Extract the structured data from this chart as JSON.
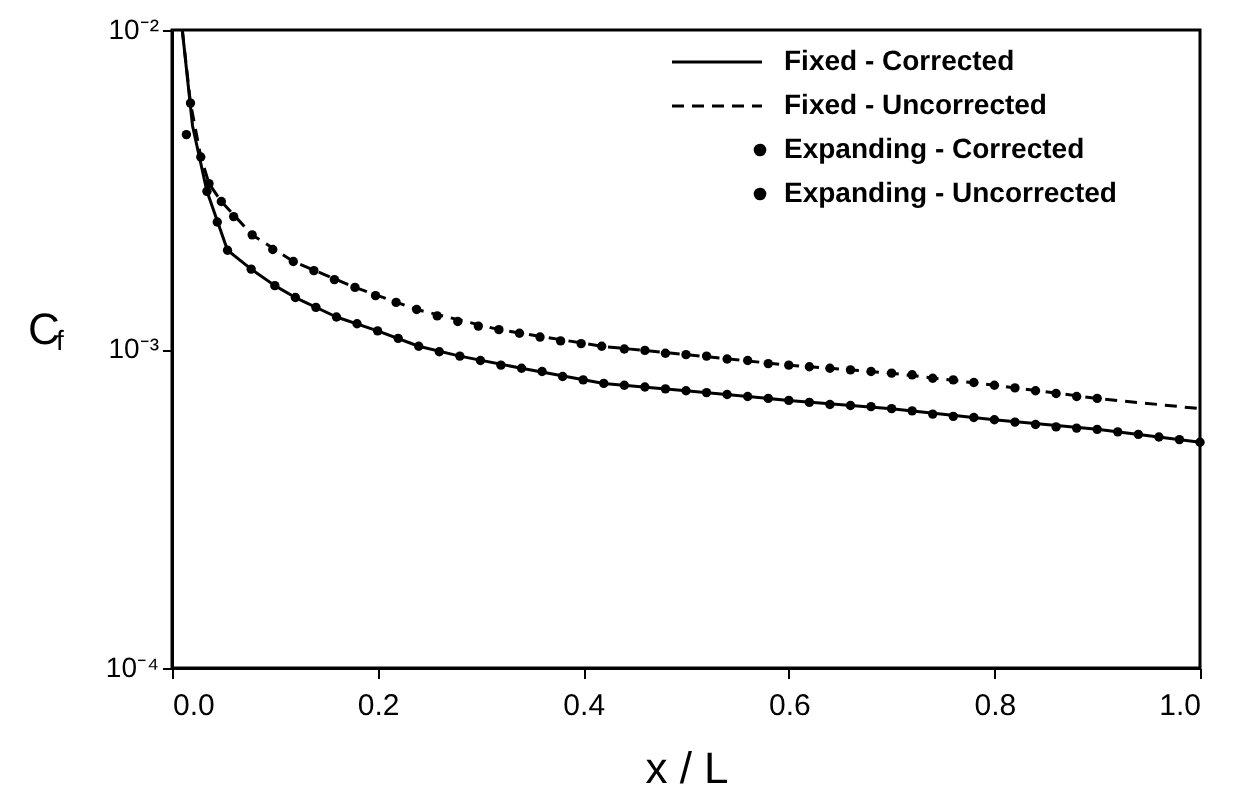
{
  "chart_data": {
    "type": "line",
    "xlabel": "x / L",
    "ylabel": "C$_{f}$",
    "log": "y",
    "grid": false,
    "legend": "top right",
    "xlim": [
      0,
      1
    ],
    "xticks": [
      {
        "value": 0,
        "label": "0.0"
      },
      {
        "value": 0.2,
        "label": "0.2"
      },
      {
        "value": 0.4,
        "label": "0.4"
      },
      {
        "value": 0.6,
        "label": "0.6"
      },
      {
        "value": 0.8,
        "label": "0.8"
      },
      {
        "value": 1,
        "label": "1.0"
      }
    ],
    "ylim": [
      0.0001,
      0.01
    ],
    "yticks": [
      {
        "value": 0.0001,
        "label": "10⁻⁴"
      },
      {
        "value": 0.001,
        "label": "10⁻³"
      },
      {
        "value": 0.01,
        "label": "10⁻²"
      }
    ],
    "series": [
      {
        "name": "Fixed - Corrected",
        "type": "line",
        "line_style": "solid",
        "marker": "none",
        "color": "#000000",
        "x": [
          0.01,
          0.02,
          0.034,
          0.054,
          0.077,
          0.1,
          0.12,
          0.16,
          0.2,
          0.24,
          0.28,
          0.34,
          0.42,
          0.5,
          0.6,
          0.7,
          0.8,
          0.9,
          1.0
        ],
        "values": [
          0.01,
          0.005,
          0.00312,
          0.00204,
          0.00178,
          0.00158,
          0.00145,
          0.00126,
          0.00114,
          0.00102,
          0.00095,
          0.00087,
          0.00078,
          0.00074,
          0.00069,
          0.00065,
          0.0006,
          0.00056,
          0.00051
        ]
      },
      {
        "name": "Fixed - Uncorrected",
        "type": "line",
        "line_style": "dashed",
        "marker": "none",
        "color": "#000000",
        "x": [
          0.01,
          0.018,
          0.028,
          0.036,
          0.048,
          0.078,
          0.118,
          0.178,
          0.238,
          0.318,
          0.418,
          0.5,
          0.6,
          0.7,
          0.8,
          0.9,
          1.0
        ],
        "values": [
          0.01,
          0.0059,
          0.004,
          0.0033,
          0.0029,
          0.00228,
          0.00188,
          0.00156,
          0.00133,
          0.00115,
          0.00102,
          0.00096,
          0.00089,
          0.00084,
          0.00077,
          0.0007,
          0.00065
        ]
      },
      {
        "name": "Expanding - Corrected",
        "type": "scatter",
        "marker": "circle",
        "color": "#000000",
        "x": [
          0.014,
          0.034,
          0.044,
          0.054,
          0.077,
          0.1,
          0.12,
          0.14,
          0.16,
          0.18,
          0.2,
          0.22,
          0.24,
          0.26,
          0.28,
          0.3,
          0.32,
          0.34,
          0.36,
          0.38,
          0.4,
          0.42,
          0.44,
          0.46,
          0.48,
          0.5,
          0.52,
          0.54,
          0.56,
          0.58,
          0.6,
          0.62,
          0.64,
          0.66,
          0.68,
          0.7,
          0.72,
          0.74,
          0.76,
          0.78,
          0.8,
          0.82,
          0.84,
          0.86,
          0.88,
          0.9,
          0.92,
          0.94,
          0.96,
          0.98,
          1.0
        ],
        "values": [
          0.0047,
          0.00312,
          0.0025,
          0.00204,
          0.00178,
          0.00158,
          0.00145,
          0.00135,
          0.00126,
          0.0012,
          0.00114,
          0.00108,
          0.00102,
          0.00098,
          0.00095,
          0.00092,
          0.00089,
          0.00087,
          0.00085,
          0.00082,
          0.0008,
          0.00078,
          0.00077,
          0.00076,
          0.00075,
          0.00074,
          0.00073,
          0.00072,
          0.00071,
          0.0007,
          0.00069,
          0.00068,
          0.00067,
          0.000665,
          0.00066,
          0.00065,
          0.00064,
          0.000625,
          0.000615,
          0.00061,
          0.0006,
          0.00059,
          0.00058,
          0.00057,
          0.000565,
          0.00056,
          0.00055,
          0.00054,
          0.00053,
          0.00052,
          0.00051
        ]
      },
      {
        "name": "Expanding - Uncorrected",
        "type": "scatter",
        "marker": "circle",
        "color": "#000000",
        "x": [
          0.018,
          0.028,
          0.036,
          0.048,
          0.06,
          0.078,
          0.098,
          0.118,
          0.138,
          0.158,
          0.178,
          0.198,
          0.218,
          0.238,
          0.258,
          0.278,
          0.298,
          0.318,
          0.338,
          0.358,
          0.378,
          0.398,
          0.418,
          0.44,
          0.46,
          0.48,
          0.5,
          0.52,
          0.54,
          0.56,
          0.58,
          0.6,
          0.62,
          0.64,
          0.66,
          0.68,
          0.7,
          0.72,
          0.74,
          0.76,
          0.78,
          0.8,
          0.82,
          0.84,
          0.86,
          0.88,
          0.9
        ],
        "values": [
          0.0059,
          0.004,
          0.0033,
          0.0029,
          0.0026,
          0.00228,
          0.00205,
          0.00188,
          0.00176,
          0.00165,
          0.00156,
          0.00147,
          0.0014,
          0.00133,
          0.00127,
          0.00122,
          0.00118,
          0.00115,
          0.00112,
          0.00109,
          0.00106,
          0.00104,
          0.00102,
          0.001,
          0.00099,
          0.00097,
          0.00096,
          0.00095,
          0.00093,
          0.00092,
          0.0009,
          0.00089,
          0.00088,
          0.00087,
          0.00086,
          0.00085,
          0.00084,
          0.00083,
          0.00081,
          0.0008,
          0.000785,
          0.00077,
          0.000755,
          0.00074,
          0.000725,
          0.00071,
          0.0007
        ]
      }
    ]
  }
}
